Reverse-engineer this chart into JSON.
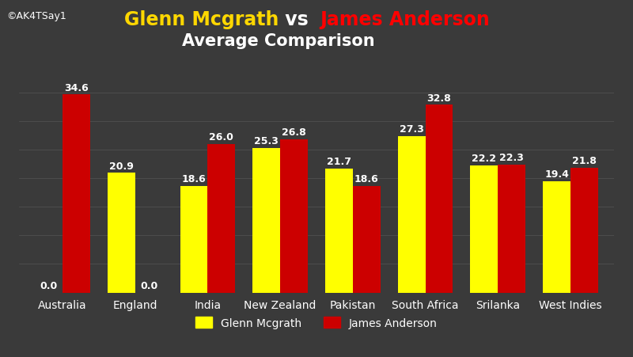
{
  "categories": [
    "Australia",
    "England",
    "India",
    "New Zealand",
    "Pakistan",
    "South Africa",
    "Srilanka",
    "West Indies"
  ],
  "mcgrath": [
    0.0,
    20.9,
    18.6,
    25.3,
    21.7,
    27.3,
    22.2,
    19.4
  ],
  "anderson": [
    34.6,
    0.0,
    26.0,
    26.8,
    18.6,
    32.8,
    22.3,
    21.8
  ],
  "mcgrath_color": "#FFFF00",
  "anderson_color": "#CC0000",
  "background_color": "#3a3a3a",
  "title_line1_yellow": "Glenn Mcgrath",
  "title_line1_vs": " vs ",
  "title_line1_red": "James Anderson",
  "title_line2": "Average Comparison",
  "title_fontsize": 17,
  "subtitle_fontsize": 15,
  "bar_label_fontsize": 9,
  "tick_label_fontsize": 10,
  "legend_label_mcgrath": "Glenn Mcgrath",
  "legend_label_anderson": "James Anderson",
  "ylim": [
    0,
    40
  ],
  "bar_width": 0.38,
  "watermark": "©AK4TSay1"
}
